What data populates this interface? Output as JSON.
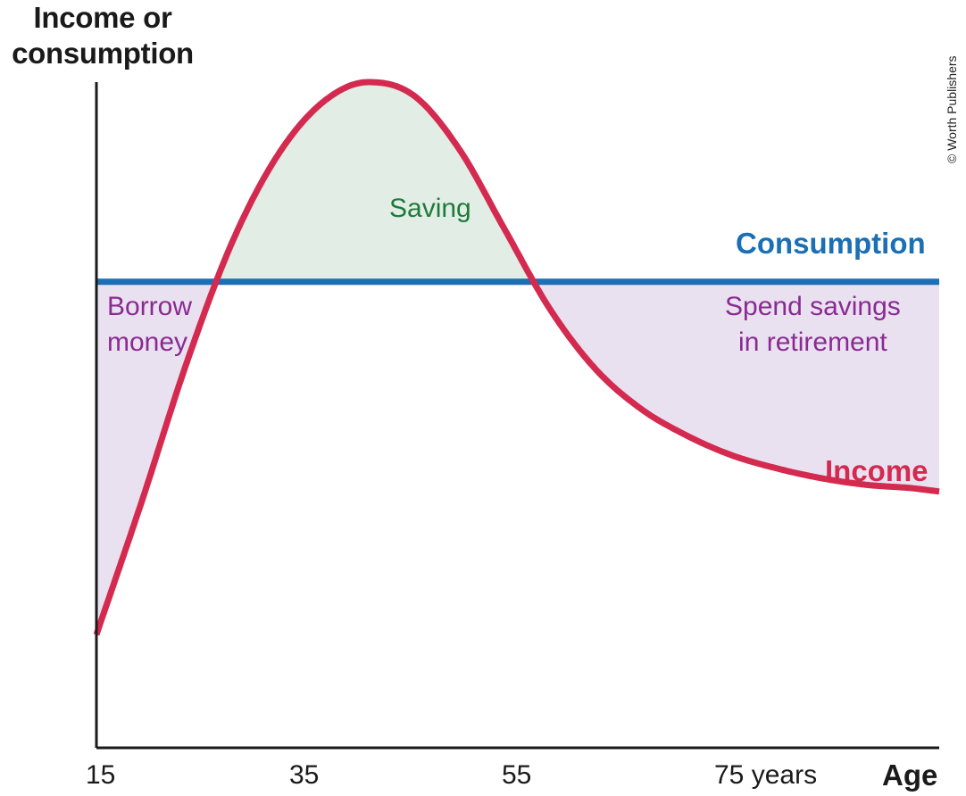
{
  "credit": "© Worth Publishers",
  "chart_data": {
    "type": "line",
    "ylabel": "Income or consumption",
    "xlabel": "Age",
    "x_ticks": [
      {
        "value": 15,
        "label": "15"
      },
      {
        "value": 35,
        "label": "35"
      },
      {
        "value": 55,
        "label": "55"
      },
      {
        "value": 75,
        "label": "75 years"
      }
    ],
    "xlim": [
      15,
      108
    ],
    "ylim": [
      0,
      100
    ],
    "grid": false,
    "series": [
      {
        "name": "Consumption",
        "color": "#1a6fb5",
        "x": [
          15,
          108
        ],
        "y": [
          70,
          70
        ]
      },
      {
        "name": "Income",
        "color": "#d42a4f",
        "x": [
          15,
          20,
          25,
          30,
          35,
          40,
          45,
          50,
          55,
          60,
          65,
          70,
          75,
          80,
          85,
          90,
          95,
          100,
          105,
          108
        ],
        "y": [
          17,
          37,
          58,
          76,
          89,
          97,
          100,
          98,
          90,
          78,
          66,
          57,
          51,
          47,
          44,
          42,
          40.5,
          39.5,
          39,
          38.5
        ]
      }
    ],
    "regions": [
      {
        "label": "Borrow money",
        "lines": [
          "Borrow",
          "money"
        ],
        "color": "#e9e1f0"
      },
      {
        "label": "Saving",
        "lines": [
          "Saving"
        ],
        "color": "#e2eee5"
      },
      {
        "label": "Spend savings in retirement",
        "lines": [
          "Spend savings",
          "in retirement"
        ],
        "color": "#e9e1f0"
      }
    ],
    "region_text_colors": {
      "borrow": "#8a2a92",
      "saving": "#1f7a3a",
      "retirement": "#8a2a92"
    }
  }
}
